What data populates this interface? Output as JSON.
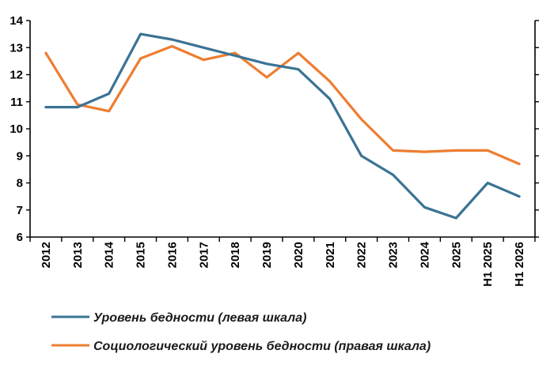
{
  "chart_data": {
    "type": "line",
    "title": "",
    "xlabel": "",
    "ylabel": "",
    "categories": [
      "2012",
      "2013",
      "2014",
      "2015",
      "2016",
      "2017",
      "2018",
      "2019",
      "2020",
      "2021",
      "2022",
      "2023",
      "2024",
      "2025",
      "H1 2025",
      "H1 2026"
    ],
    "y_ticks": [
      "6",
      "7",
      "8",
      "9",
      "10",
      "11",
      "12",
      "13",
      "14"
    ],
    "ylim": [
      6,
      14
    ],
    "right_axis": {
      "tick_labels_shown": false
    },
    "grid": false,
    "legend_position": "bottom",
    "series": [
      {
        "name": "Уровень бедности (левая шкала)",
        "axis": "left",
        "color": "#3a7394",
        "values": [
          10.8,
          10.8,
          11.3,
          13.5,
          13.3,
          13.0,
          12.7,
          12.4,
          12.2,
          11.1,
          9.0,
          8.3,
          7.1,
          6.7,
          8.0,
          7.5
        ]
      },
      {
        "name": "Социологический уровень бедности (правая шкала)",
        "axis": "right",
        "color": "#ee7d31",
        "values": [
          12.8,
          10.9,
          10.65,
          12.6,
          13.05,
          12.55,
          12.8,
          11.9,
          12.8,
          11.75,
          10.35,
          9.2,
          9.15,
          9.2,
          9.2,
          8.7
        ]
      }
    ]
  }
}
